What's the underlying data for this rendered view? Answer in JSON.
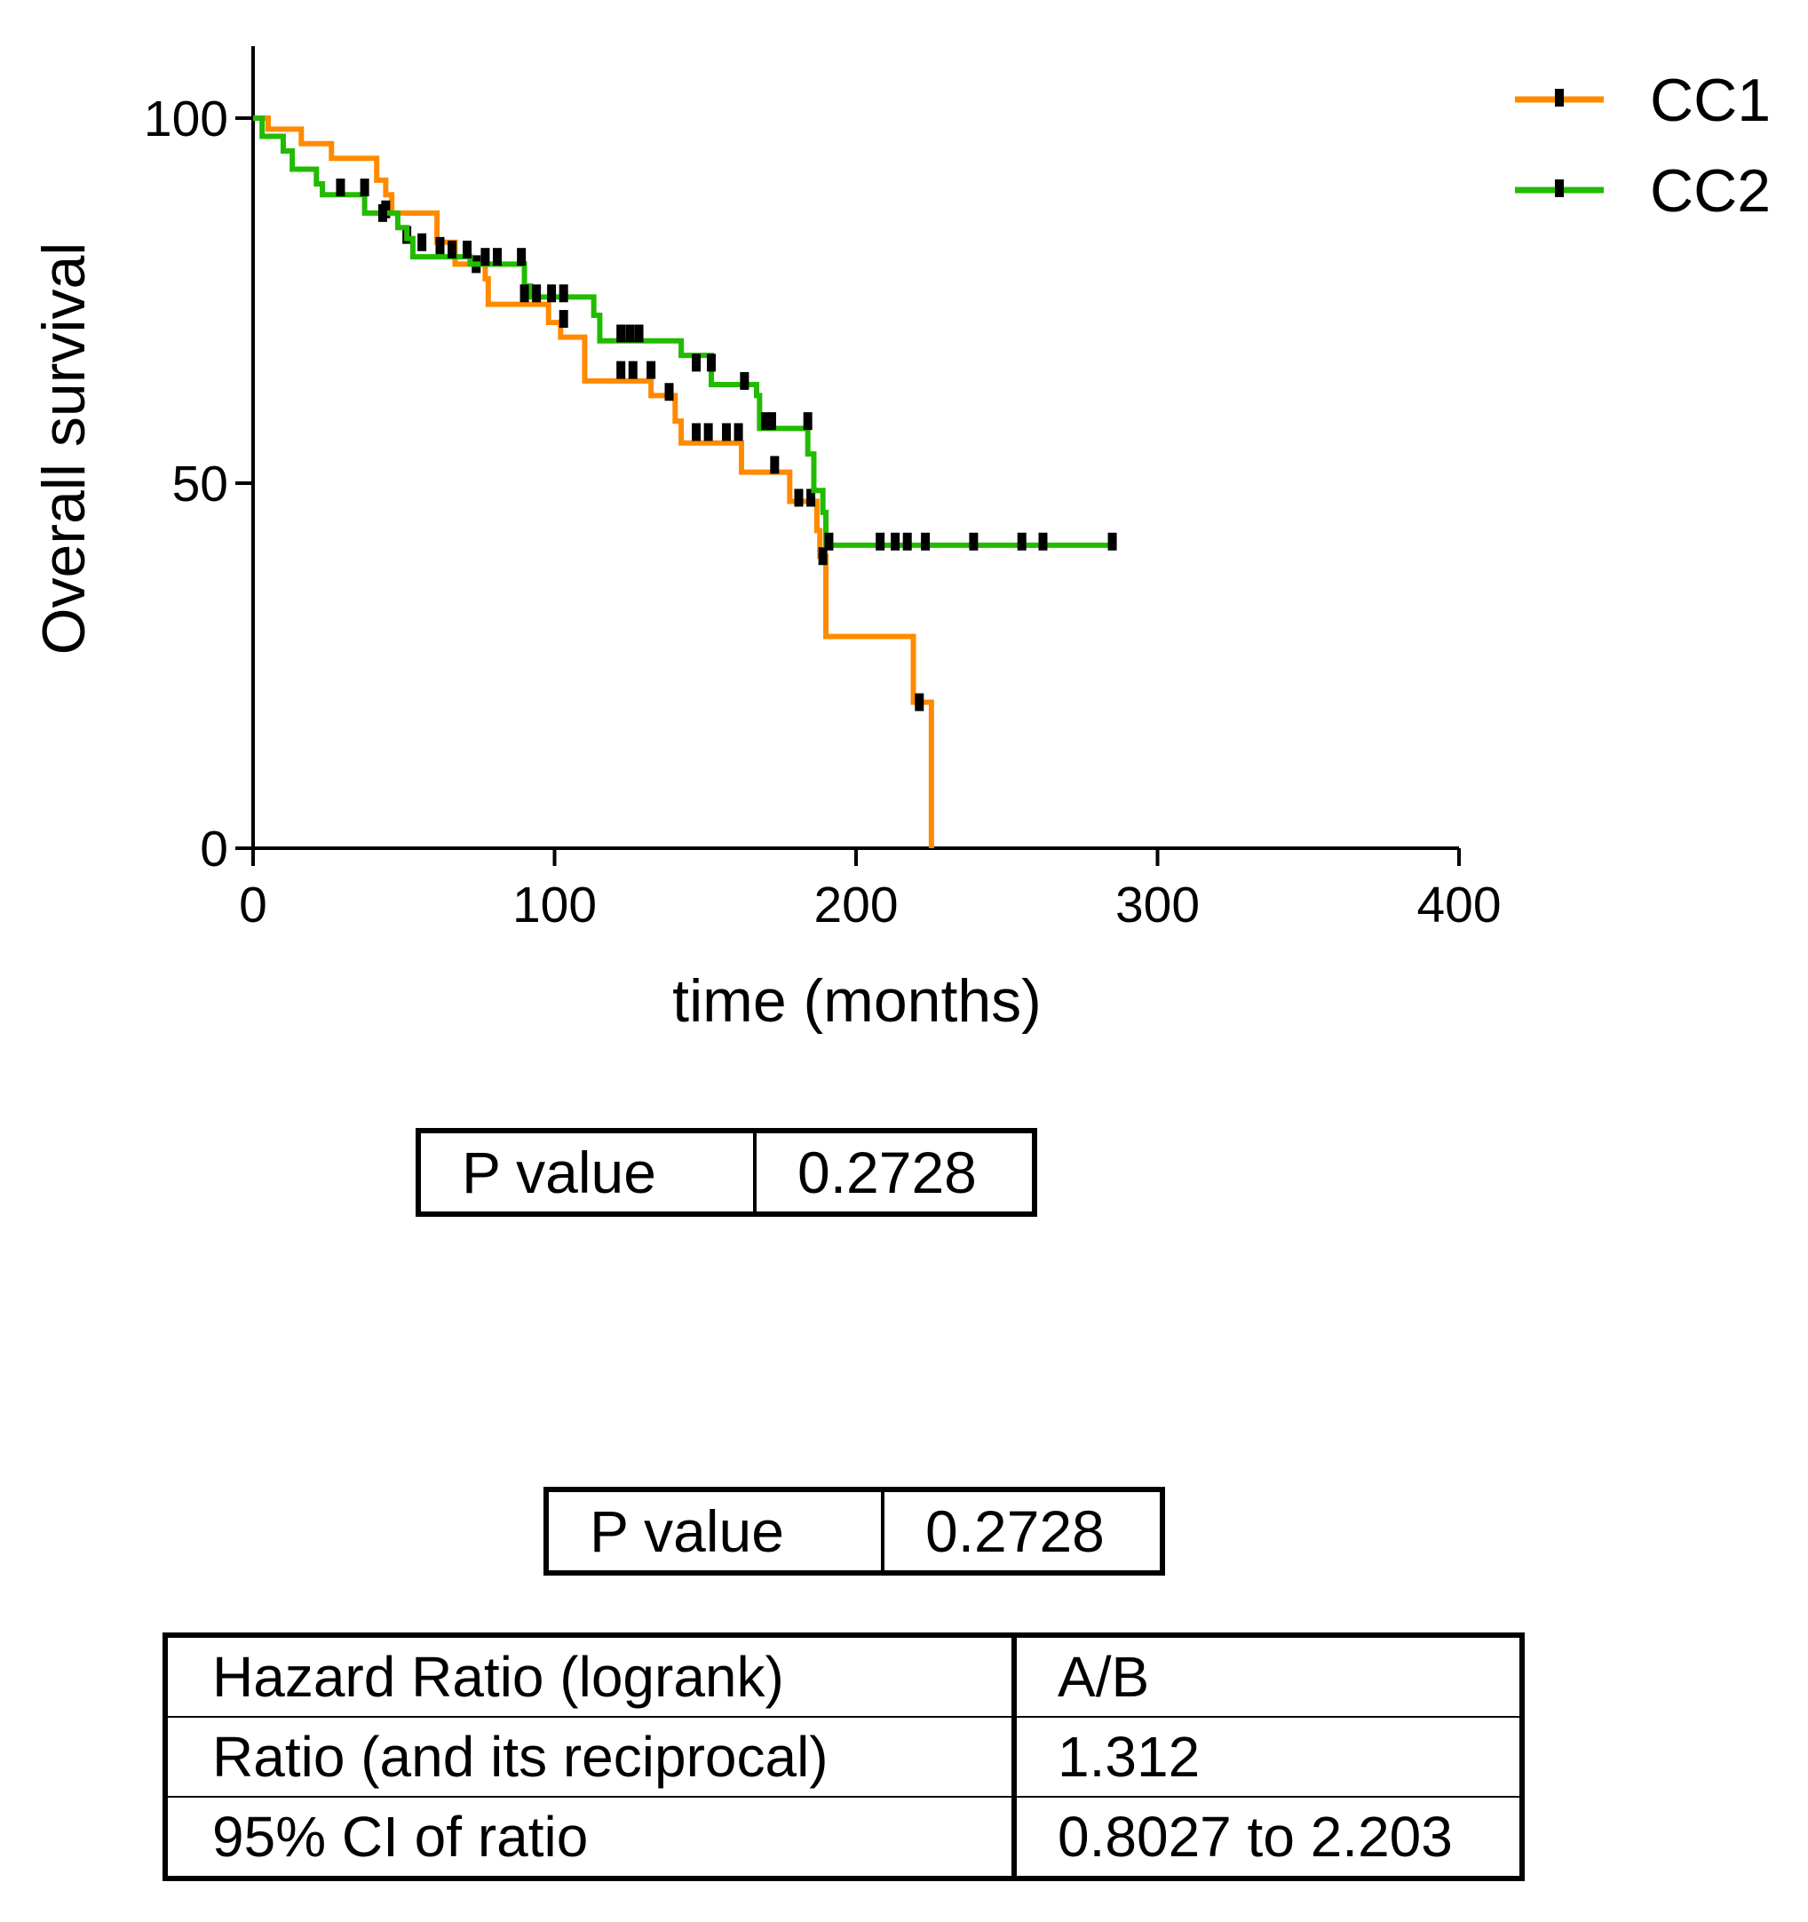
{
  "chart_data": {
    "type": "line",
    "subtype": "kaplan-meier",
    "xlabel": "time (months)",
    "ylabel": "Overall survival",
    "xlim": [
      0,
      400
    ],
    "ylim": [
      0,
      110
    ],
    "xticks": [
      "0",
      "100",
      "200",
      "300",
      "400"
    ],
    "yticks": [
      "0",
      "50",
      "100"
    ],
    "legend_position": "top-right",
    "series": [
      {
        "name": "CC1",
        "color": "#FF8A00",
        "steps": [
          [
            0,
            100
          ],
          [
            5,
            98.5
          ],
          [
            16,
            96.5
          ],
          [
            26,
            94.5
          ],
          [
            41,
            91.5
          ],
          [
            44,
            89.5
          ],
          [
            46,
            87
          ],
          [
            61,
            83
          ],
          [
            67,
            80
          ],
          [
            77,
            78
          ],
          [
            78,
            74.5
          ],
          [
            98,
            72
          ],
          [
            102,
            70
          ],
          [
            110,
            64
          ],
          [
            132,
            62
          ],
          [
            140,
            58.5
          ],
          [
            142,
            55.5
          ],
          [
            162,
            51.5
          ],
          [
            178,
            47.5
          ],
          [
            187,
            43.5
          ],
          [
            188,
            40
          ],
          [
            190,
            29
          ],
          [
            219,
            20
          ],
          [
            225,
            0
          ]
        ],
        "end_x": 225,
        "censored": [
          [
            44,
            87.5
          ],
          [
            51,
            84
          ],
          [
            62,
            82.5
          ],
          [
            74,
            80
          ],
          [
            103,
            72.5
          ],
          [
            122,
            65.5
          ],
          [
            126,
            65.5
          ],
          [
            132,
            65.5
          ],
          [
            138,
            62.5
          ],
          [
            147,
            57
          ],
          [
            151,
            57
          ],
          [
            157,
            57
          ],
          [
            161,
            57
          ],
          [
            173,
            52.5
          ],
          [
            181,
            48
          ],
          [
            185,
            48
          ],
          [
            189,
            40
          ],
          [
            221,
            20
          ]
        ]
      },
      {
        "name": "CC2",
        "color": "#22BB00",
        "steps": [
          [
            0,
            100
          ],
          [
            3,
            97.5
          ],
          [
            10,
            95.5
          ],
          [
            13,
            93
          ],
          [
            21,
            91
          ],
          [
            23,
            89.5
          ],
          [
            37,
            87
          ],
          [
            48,
            85
          ],
          [
            51,
            83.5
          ],
          [
            53,
            81
          ],
          [
            72,
            80
          ],
          [
            90,
            77
          ],
          [
            92,
            75.5
          ],
          [
            113,
            73
          ],
          [
            115,
            69.5
          ],
          [
            142,
            67.5
          ],
          [
            152,
            63.5
          ],
          [
            167,
            62
          ],
          [
            168,
            57.5
          ],
          [
            184,
            54
          ],
          [
            186,
            49
          ],
          [
            189,
            46
          ],
          [
            190,
            41.5
          ],
          [
            285,
            41.5
          ]
        ],
        "end_x": 285,
        "censored": [
          [
            29,
            90.5
          ],
          [
            37,
            90.5
          ],
          [
            43,
            87
          ],
          [
            56,
            83
          ],
          [
            66,
            82
          ],
          [
            71,
            82
          ],
          [
            77,
            81
          ],
          [
            81,
            81
          ],
          [
            89,
            81
          ],
          [
            90,
            76
          ],
          [
            94,
            76
          ],
          [
            99,
            76
          ],
          [
            103,
            76
          ],
          [
            122,
            70.5
          ],
          [
            125,
            70.5
          ],
          [
            128,
            70.5
          ],
          [
            147,
            66.5
          ],
          [
            152,
            66.5
          ],
          [
            163,
            64
          ],
          [
            170,
            58.5
          ],
          [
            172,
            58.5
          ],
          [
            184,
            58.5
          ],
          [
            191,
            42
          ],
          [
            208,
            42
          ],
          [
            213,
            42
          ],
          [
            217,
            42
          ],
          [
            223,
            42
          ],
          [
            239,
            42
          ],
          [
            255,
            42
          ],
          [
            262,
            42
          ],
          [
            285,
            42
          ]
        ]
      }
    ]
  },
  "pvalue_table_1": {
    "label": "P value",
    "value": "0.2728"
  },
  "pvalue_table_2": {
    "label": "P value",
    "value": "0.2728"
  },
  "hazard_table": {
    "rows": [
      {
        "label": "Hazard Ratio (logrank)",
        "value": "A/B"
      },
      {
        "label": "Ratio (and its reciprocal)",
        "value": "1.312"
      },
      {
        "label": "95% CI of ratio",
        "value": "0.8027 to 2.203"
      }
    ]
  }
}
